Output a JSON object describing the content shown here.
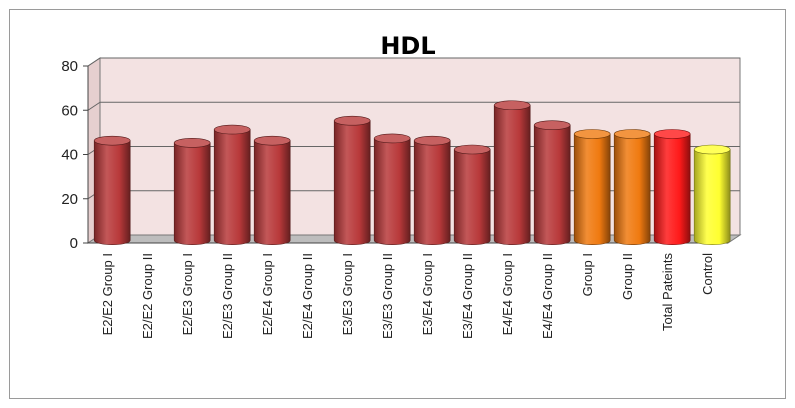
{
  "chart_data": {
    "type": "bar",
    "title": "HDL",
    "xlabel": "",
    "ylabel": "",
    "ylim": [
      0,
      80
    ],
    "yticks": [
      0,
      20,
      40,
      60,
      80
    ],
    "grid": true,
    "style": "3d-cylinder",
    "categories": [
      "E2/E2 Group I",
      "E2/E2 Group II",
      "E2/E3 Group I",
      "E2/E3 Group II",
      "E2/E4 Group I",
      "E2/E4 Group II",
      "E3/E3 Group I",
      "E3/E3 Group II",
      "E3/E4 Group I",
      "E3/E4 Group II",
      "E4/E4 Group I",
      "E4/E4 Group II",
      "Group I",
      "Group II",
      "Total Pateints",
      "Control"
    ],
    "values": [
      45,
      0,
      44,
      50,
      45,
      0,
      54,
      46,
      45,
      41,
      61,
      52,
      48,
      48,
      48,
      41
    ],
    "colors": [
      "#b8393a",
      "#b8393a",
      "#b8393a",
      "#b8393a",
      "#b8393a",
      "#b8393a",
      "#b8393a",
      "#b8393a",
      "#b8393a",
      "#b8393a",
      "#b8393a",
      "#b8393a",
      "#f07a10",
      "#f07a10",
      "#ff1a1a",
      "#ffff30"
    ],
    "plot_background": "#f3e2e2"
  }
}
